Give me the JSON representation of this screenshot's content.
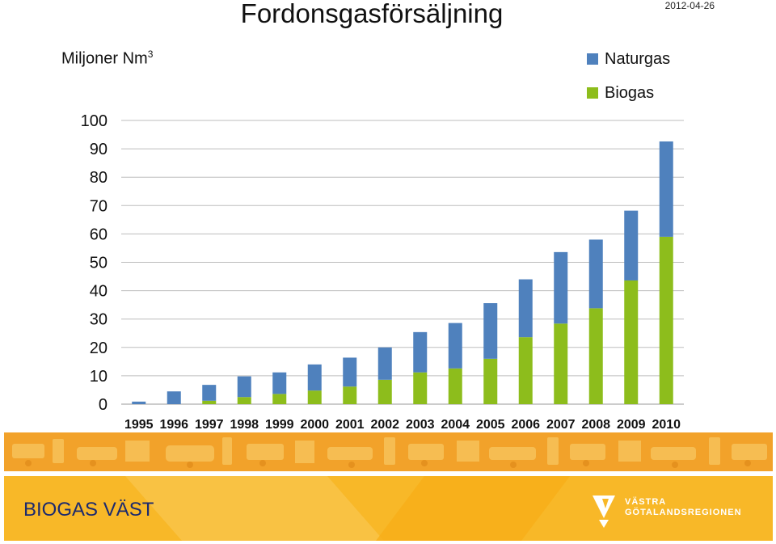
{
  "header": {
    "title": "Fordonsgasförsäljning",
    "date": "2012-04-26"
  },
  "chart_data": {
    "type": "bar",
    "stacked": true,
    "title": "Fordonsgasförsäljning",
    "ylabel": "Miljoner Nm",
    "ylabel_superscript": "3",
    "xlabel": "",
    "ylim": [
      0,
      100
    ],
    "yticks": [
      "0",
      "10",
      "20",
      "30",
      "40",
      "50",
      "60",
      "70",
      "80",
      "90",
      "100"
    ],
    "grid": true,
    "legend_position": "top-right",
    "categories": [
      "1995",
      "1996",
      "1997",
      "1998",
      "1999",
      "2000",
      "2001",
      "2002",
      "2003",
      "2004",
      "2005",
      "2006",
      "2007",
      "2008",
      "2009",
      "2010"
    ],
    "series": [
      {
        "name": "Biogas",
        "color": "#8dbd1c",
        "values": [
          0,
          0,
          1.2,
          2.5,
          3.6,
          4.8,
          6.2,
          8.6,
          11.2,
          12.6,
          16,
          23.6,
          28.4,
          33.8,
          43.6,
          59
        ]
      },
      {
        "name": "Naturgas",
        "color": "#4f81bd",
        "values": [
          0.9,
          4.5,
          5.6,
          7.3,
          7.6,
          9.2,
          10.2,
          11.4,
          14.2,
          16,
          19.6,
          20.4,
          25.2,
          24.2,
          24.6,
          33.6
        ]
      }
    ]
  },
  "footer": {
    "organization": "BIOGAS VÄST",
    "partner_line1": "VÄSTRA",
    "partner_line2": "GÖTALANDSREGIONEN"
  }
}
